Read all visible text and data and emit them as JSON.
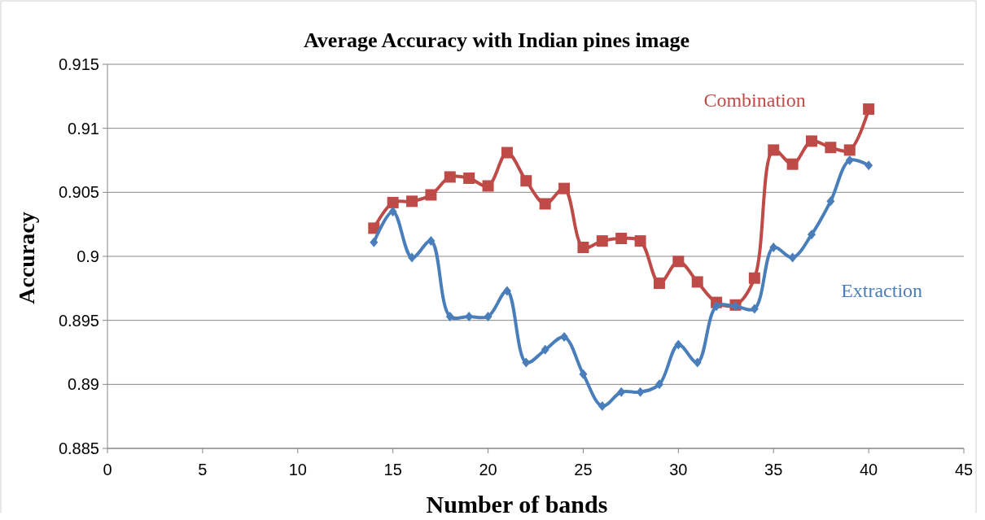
{
  "chart_data": {
    "type": "line",
    "title": "Average Accuracy with Indian pines image",
    "xlabel": "Number of bands",
    "ylabel": "Accuracy",
    "xlim": [
      0,
      45
    ],
    "xticks": [
      0,
      5,
      10,
      15,
      20,
      25,
      30,
      35,
      40,
      45
    ],
    "ylim": [
      0.885,
      0.915
    ],
    "yticks": [
      0.885,
      0.89,
      0.895,
      0.9,
      0.905,
      0.91,
      0.915
    ],
    "grid": "y",
    "legend": false,
    "series": [
      {
        "name": "Combination",
        "color": "#be4b48",
        "marker": "square",
        "x": [
          14,
          15,
          16,
          17,
          18,
          19,
          20,
          21,
          22,
          23,
          24,
          25,
          26,
          27,
          28,
          29,
          30,
          31,
          32,
          33,
          34,
          35,
          36,
          37,
          38,
          39,
          40
        ],
        "values": [
          0.9022,
          0.9042,
          0.9043,
          0.9048,
          0.9062,
          0.9061,
          0.9055,
          0.9081,
          0.9059,
          0.9041,
          0.9053,
          0.9007,
          0.9012,
          0.9014,
          0.9012,
          0.8979,
          0.8996,
          0.898,
          0.8964,
          0.8962,
          0.8983,
          0.9083,
          0.9072,
          0.909,
          0.9085,
          0.9083,
          0.9115
        ]
      },
      {
        "name": "Extraction",
        "color": "#4a7ebb",
        "marker": "diamond",
        "x": [
          14,
          15,
          16,
          17,
          18,
          19,
          20,
          21,
          22,
          23,
          24,
          25,
          26,
          27,
          28,
          29,
          30,
          31,
          32,
          33,
          34,
          35,
          36,
          37,
          38,
          39,
          40
        ],
        "values": [
          0.9011,
          0.9035,
          0.8999,
          0.9012,
          0.8953,
          0.8953,
          0.8953,
          0.8973,
          0.8917,
          0.8927,
          0.8937,
          0.8908,
          0.8883,
          0.8894,
          0.8894,
          0.89,
          0.8931,
          0.8917,
          0.8961,
          0.8961,
          0.8959,
          0.9007,
          0.8999,
          0.9017,
          0.9043,
          0.9075,
          0.9071
        ]
      }
    ]
  }
}
